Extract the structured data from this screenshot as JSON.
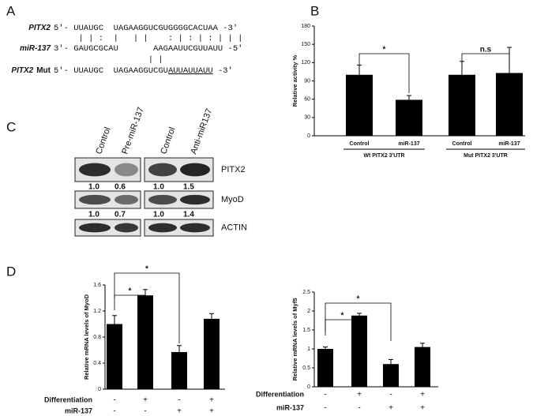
{
  "panel_labels": [
    "A",
    "B",
    "C",
    "D"
  ],
  "sequence_alignment": {
    "rows": [
      {
        "label": "PITX2",
        "text": "5'- UUAUGC  UAGAAGGUCGUGGGGCACUAA -3'"
      },
      {
        "text": "     | | :  |   | |    : | : | : | | |"
      },
      {
        "label": "miR-137",
        "text": "3'- GAUGCGCAU       AAGAAUUCGUUAUU -5'"
      },
      {
        "text": "                   | |"
      },
      {
        "label": "PITX2",
        "label_suffix": "Mut",
        "parts": [
          "5'- UUAUGC  UAGAAGGUCGU",
          "AUUAUUAUU",
          " -3'"
        ]
      }
    ]
  },
  "western_blot": {
    "columns": [
      "Control",
      "Pre-miR-137",
      "Control",
      "Anti-miR137"
    ],
    "rows": [
      {
        "label": "PITX2",
        "quantification": [
          "1.0",
          "0.6",
          "1.0",
          "1.5"
        ]
      },
      {
        "label": "MyoD",
        "quantification": [
          "1.0",
          "0.7",
          "1.0",
          "1.4"
        ]
      },
      {
        "label": "ACTIN"
      }
    ]
  },
  "chart_data": [
    {
      "type": "bar",
      "ylabel": "Relative activity %",
      "categories": [
        "Control",
        "miR-137",
        "Control",
        "miR-137"
      ],
      "groups": [
        "Wt  PITX2  3'UTR",
        "Mut PITX2  3'UTR"
      ],
      "values": [
        100,
        59,
        100,
        103
      ],
      "errors": [
        16,
        7,
        22,
        42
      ],
      "color": "#000000",
      "ylim": [
        0,
        180
      ],
      "yticks": [
        0,
        30,
        60,
        90,
        120,
        150,
        180
      ],
      "annotations": [
        "*",
        "n.s"
      ]
    },
    {
      "type": "bar",
      "ylabel": "Relative mRNA levels of MyoD",
      "rows": [
        {
          "name": "Differentiation",
          "values": [
            "-",
            "+",
            "-",
            "+"
          ]
        },
        {
          "name": "miR-137",
          "values": [
            "-",
            "-",
            "+",
            "+"
          ]
        }
      ],
      "values": [
        1.0,
        1.44,
        0.57,
        1.08
      ],
      "errors": [
        0.13,
        0.09,
        0.1,
        0.08
      ],
      "color": "#000000",
      "ylim": [
        0,
        1.6
      ],
      "yticks": [
        0,
        0.4,
        0.8,
        1.2,
        1.6
      ],
      "annotations": [
        "*",
        "*"
      ]
    },
    {
      "type": "bar",
      "ylabel": "Relative mRNA levels of Myf5",
      "rows": [
        {
          "name": "Differentiation",
          "values": [
            "-",
            "+",
            "-",
            "+"
          ]
        },
        {
          "name": "miR-137",
          "values": [
            "-",
            "-",
            "+",
            "+"
          ]
        }
      ],
      "values": [
        1.0,
        1.88,
        0.6,
        1.05
      ],
      "errors": [
        0.05,
        0.06,
        0.12,
        0.1
      ],
      "color": "#000000",
      "ylim": [
        0,
        2.5
      ],
      "yticks": [
        0,
        0.5,
        1,
        1.5,
        2,
        2.5
      ],
      "annotations": [
        "*",
        "*"
      ]
    }
  ]
}
